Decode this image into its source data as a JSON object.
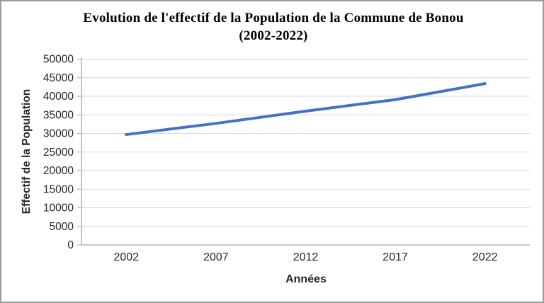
{
  "window": {
    "background_color": "#ffffff",
    "frame_border_color": "#9b9b9b"
  },
  "chart_data": {
    "type": "line",
    "title_line1": "Evolution de l'effectif de la Population de la Commune de Bonou",
    "title_line2": "(2002-2022)",
    "xlabel": "Années",
    "ylabel": "Effectif de la Population",
    "categories": [
      "2002",
      "2007",
      "2012",
      "2017",
      "2022"
    ],
    "series": [
      {
        "values": [
          29700,
          32700,
          36000,
          39100,
          43400
        ],
        "color": "#4472C4"
      }
    ],
    "ylim": [
      0,
      50000
    ],
    "yticks": [
      0,
      5000,
      10000,
      15000,
      20000,
      25000,
      30000,
      35000,
      40000,
      45000,
      50000
    ],
    "grid": "horizontal",
    "legend": "none",
    "gridline_color": "#d9d9d9",
    "axis_line_color": "#a6a6a6",
    "tick_label_color": "#262626",
    "title_color": "#000000"
  }
}
